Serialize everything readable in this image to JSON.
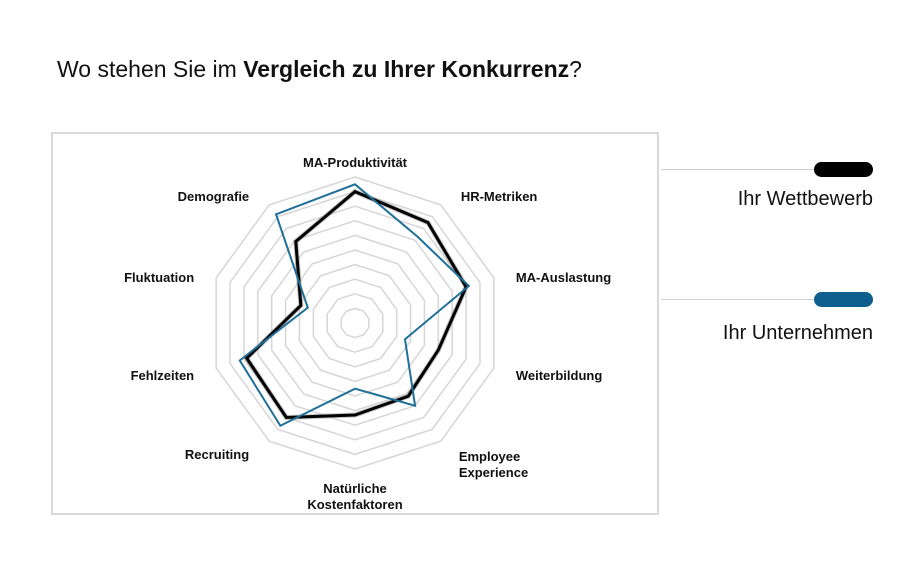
{
  "title": {
    "prefix": "Wo stehen Sie im ",
    "bold": "Vergleich zu Ihrer Konkurrenz",
    "suffix": "?"
  },
  "chart_data": {
    "type": "radar",
    "categories": [
      "MA-Produktivität",
      "HR-Metriken",
      "MA-Auslastung",
      "Weiterbildung",
      "Employee Experience",
      "Natürliche Kostenfaktoren",
      "Recruiting",
      "Fehlzeiten",
      "Fluktuation",
      "Demografie"
    ],
    "rmax": 10,
    "rings": 10,
    "series": [
      {
        "name": "Ihr Wettbewerb",
        "color": "#000000",
        "values": [
          9,
          8.5,
          8,
          6,
          6.2,
          6.3,
          8,
          7.8,
          3.9,
          6.9
        ]
      },
      {
        "name": "Ihr Unternehmen",
        "color": "#1f6f99",
        "values": [
          9.5,
          7.3,
          8.2,
          3.6,
          7,
          4.5,
          8.7,
          8.3,
          3.4,
          9.2
        ]
      }
    ]
  },
  "legend": [
    {
      "label": "Ihr Wettbewerb",
      "color": "#000000"
    },
    {
      "label": "Ihr Unternehmen",
      "color": "#0e5f8e"
    }
  ]
}
